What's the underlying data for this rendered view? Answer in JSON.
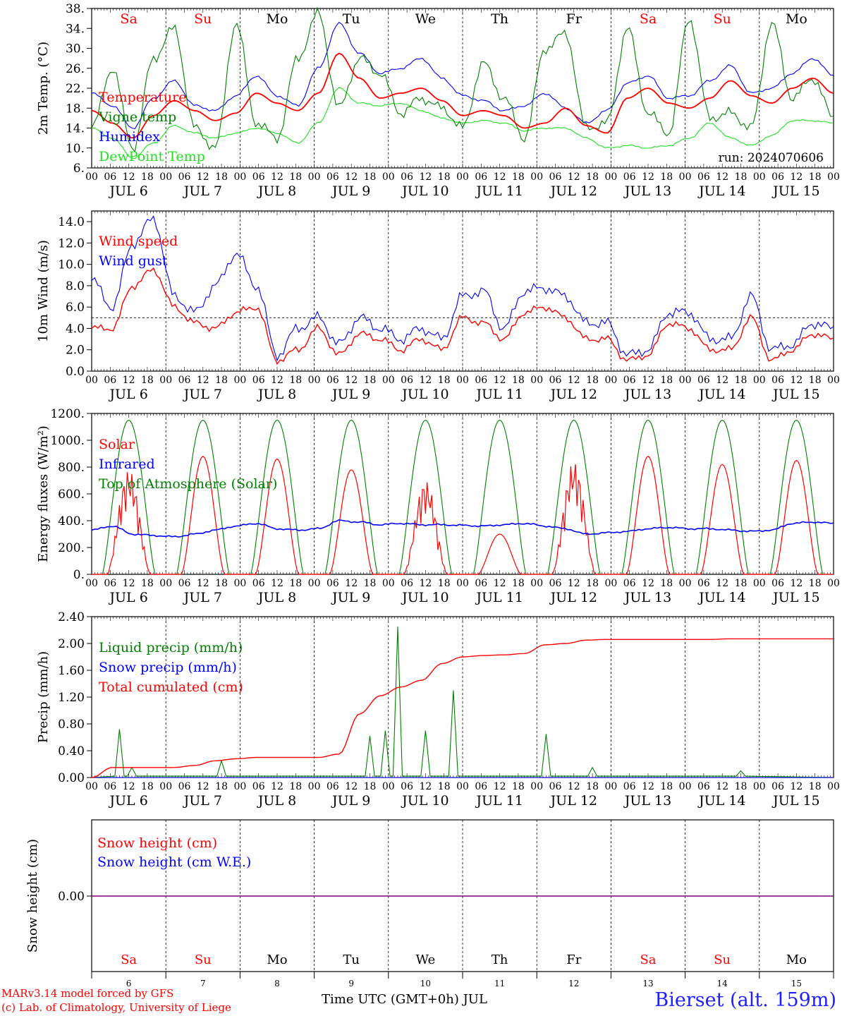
{
  "colors": {
    "red": "#ff0000",
    "green": "#008000",
    "blue": "#0000ff",
    "lightgreen": "#20e020",
    "purple": "#7f007f",
    "axis": "#000000"
  },
  "days": {
    "weekday_labels": [
      "Sa",
      "Su",
      "Mo",
      "Tu",
      "We",
      "Th",
      "Fr",
      "Sa",
      "Su",
      "Mo"
    ],
    "weekday_colors": [
      "red",
      "red",
      "black",
      "black",
      "black",
      "black",
      "black",
      "red",
      "red",
      "black"
    ],
    "date_labels": [
      "JUL  6",
      "JUL  7",
      "JUL  8",
      "JUL  9",
      "JUL 10",
      "JUL 11",
      "JUL 12",
      "JUL 13",
      "JUL 14",
      "JUL 15"
    ],
    "day_numbers": [
      "6",
      "7",
      "8",
      "9",
      "10",
      "11",
      "12",
      "13",
      "14",
      "15"
    ],
    "hour_ticks": [
      "00",
      "06",
      "12",
      "18"
    ],
    "final_tick": "00"
  },
  "chart_data": [
    {
      "type": "line",
      "id": "temp",
      "ylabel": "2m Temp. (°C)",
      "ylim": [
        6,
        38
      ],
      "yticks": [
        "6.",
        "10.",
        "14.",
        "18.",
        "22.",
        "26.",
        "30.",
        "34.",
        "38."
      ],
      "ytick_values": [
        6,
        10,
        14,
        18,
        22,
        26,
        30,
        34,
        38
      ],
      "annotation": "run: 2024070606",
      "x_hours_step": 6,
      "series": [
        {
          "name": "Temperature",
          "color": "red",
          "values": [
            17.5,
            15.0,
            12.0,
            16.5,
            19.5,
            17.5,
            15.5,
            17.0,
            21.0,
            19.0,
            17.5,
            21.0,
            29.0,
            24.0,
            20.0,
            21.0,
            22.0,
            19.5,
            16.5,
            17.5,
            16.5,
            14.0,
            15.0,
            18.0,
            14.5,
            13.0,
            20.0,
            22.0,
            19.0,
            18.0,
            20.0,
            23.5,
            20.5,
            19.0,
            22.0,
            24.0,
            21.0
          ]
        },
        {
          "name": "Vigne temp",
          "color": "green",
          "values": [
            14.0,
            26.0,
            10.0,
            28.0,
            34.0,
            14.0,
            10.0,
            35.0,
            15.0,
            12.0,
            28.0,
            37.0,
            18.0,
            28.0,
            25.0,
            17.0,
            20.0,
            18.0,
            14.0,
            27.0,
            20.0,
            12.0,
            30.0,
            33.0,
            14.0,
            15.0,
            34.0,
            17.0,
            13.0,
            36.0,
            16.0,
            17.0,
            14.0,
            35.0,
            20.0,
            24.0,
            16.0
          ]
        },
        {
          "name": "Humidex",
          "color": "blue",
          "values": [
            21.0,
            18.5,
            14.0,
            20.0,
            23.5,
            18.5,
            17.5,
            20.5,
            24.5,
            20.5,
            18.5,
            26.0,
            35.0,
            29.0,
            25.0,
            26.0,
            28.0,
            24.0,
            20.5,
            19.5,
            17.5,
            18.5,
            21.0,
            18.0,
            15.0,
            17.5,
            23.0,
            24.5,
            20.0,
            20.5,
            23.5,
            26.5,
            21.0,
            22.0,
            25.0,
            28.0,
            24.5
          ]
        },
        {
          "name": "DewPoint Temp",
          "color": "lightgreen",
          "values": [
            14.0,
            12.0,
            8.0,
            11.0,
            14.5,
            13.0,
            12.0,
            13.0,
            14.0,
            13.0,
            11.0,
            15.0,
            22.0,
            19.0,
            18.5,
            19.0,
            17.5,
            16.0,
            15.0,
            15.5,
            15.0,
            13.5,
            14.0,
            14.0,
            12.0,
            10.0,
            10.5,
            10.0,
            10.5,
            12.0,
            15.0,
            12.0,
            10.5,
            12.5,
            15.5,
            15.5,
            15.0
          ]
        }
      ]
    },
    {
      "type": "line",
      "id": "wind",
      "ylabel": "10m Wind (m/s)",
      "ylim": [
        0,
        15
      ],
      "yticks": [
        "0.0",
        "2.0",
        "4.0",
        "6.0",
        "8.0",
        "10.0",
        "12.0",
        "14.0"
      ],
      "ytick_values": [
        0,
        2,
        4,
        6,
        8,
        10,
        12,
        14
      ],
      "reference_line": 5,
      "series": [
        {
          "name": "Wind speed",
          "color": "red",
          "values": [
            4.0,
            4.0,
            8.0,
            9.5,
            6.0,
            4.5,
            4.0,
            5.5,
            6.0,
            1.0,
            2.0,
            4.0,
            1.5,
            3.5,
            3.0,
            2.0,
            3.0,
            2.0,
            5.0,
            4.5,
            3.0,
            5.5,
            6.0,
            5.0,
            3.0,
            3.0,
            1.0,
            1.5,
            4.5,
            4.0,
            2.0,
            2.0,
            5.0,
            1.0,
            2.0,
            3.5,
            3.0
          ]
        },
        {
          "name": "Wind gust",
          "color": "blue",
          "values": [
            8.5,
            6.0,
            12.0,
            14.3,
            7.0,
            5.5,
            8.0,
            11.0,
            8.0,
            1.5,
            4.0,
            5.0,
            2.5,
            5.0,
            4.0,
            3.0,
            4.0,
            3.0,
            7.0,
            7.5,
            4.0,
            7.5,
            7.8,
            7.0,
            4.5,
            4.5,
            1.5,
            2.0,
            5.5,
            5.5,
            3.0,
            3.0,
            7.0,
            2.0,
            2.5,
            4.5,
            4.0
          ]
        }
      ]
    },
    {
      "type": "line",
      "id": "energy",
      "ylabel": "Energy fluxes (W/m²)",
      "ylim": [
        0,
        1200
      ],
      "yticks": [
        "0.",
        "200.",
        "400.",
        "600.",
        "800.",
        "1000.",
        "1200."
      ],
      "ytick_values": [
        0,
        200,
        400,
        600,
        800,
        1000,
        1200
      ],
      "series": [
        {
          "name": "Solar",
          "color": "red",
          "peaks": [
            780,
            880,
            860,
            780,
            700,
            300,
            840,
            880,
            820,
            850
          ]
        },
        {
          "name": "Infrared",
          "color": "blue",
          "values": [
            330,
            360,
            300,
            290,
            280,
            300,
            330,
            360,
            380,
            340,
            330,
            340,
            400,
            390,
            370,
            380,
            370,
            370,
            365,
            360,
            370,
            380,
            360,
            340,
            300,
            310,
            320,
            340,
            350,
            340,
            340,
            330,
            320,
            330,
            380,
            390,
            380
          ]
        },
        {
          "name": "Top of Atmosphere (Solar)",
          "color": "green",
          "peak": 1150
        }
      ]
    },
    {
      "type": "line",
      "id": "precip",
      "ylabel": "Precip (mm/h)",
      "ylim": [
        0,
        2.4
      ],
      "yticks": [
        "0.00",
        "0.40",
        "0.80",
        "1.20",
        "1.60",
        "2.00",
        "2.40"
      ],
      "ytick_values": [
        0,
        0.4,
        0.8,
        1.2,
        1.6,
        2.0,
        2.4
      ],
      "series": [
        {
          "name": "Liquid precip (mm/h)",
          "color": "green",
          "spikes": [
            [
              9,
              0.72
            ],
            [
              13,
              0.15
            ],
            [
              42,
              0.25
            ],
            [
              90,
              0.62
            ],
            [
              95,
              0.7
            ],
            [
              99,
              2.25
            ],
            [
              108,
              0.7
            ],
            [
              117,
              1.3
            ],
            [
              147,
              0.65
            ],
            [
              162,
              0.15
            ],
            [
              210,
              0.1
            ]
          ]
        },
        {
          "name": "Snow precip (mm/h)",
          "color": "blue",
          "values": [
            0
          ]
        },
        {
          "name": "Total cumulated (cm)",
          "color": "red",
          "values": [
            0.0,
            0.15,
            0.15,
            0.15,
            0.15,
            0.18,
            0.25,
            0.28,
            0.3,
            0.3,
            0.3,
            0.3,
            0.35,
            0.95,
            1.22,
            1.35,
            1.45,
            1.7,
            1.8,
            1.82,
            1.83,
            1.85,
            1.98,
            2.0,
            2.05,
            2.06,
            2.06,
            2.06,
            2.06,
            2.06,
            2.06,
            2.07,
            2.07,
            2.07,
            2.07,
            2.07,
            2.07
          ]
        }
      ]
    },
    {
      "type": "line",
      "id": "snow",
      "ylabel": "Snow height (cm)",
      "yticks": [
        "0.00"
      ],
      "series": [
        {
          "name": "Snow height (cm)",
          "color": "red",
          "values": [
            0
          ]
        },
        {
          "name": "Snow height (cm W.E.)",
          "color": "blue",
          "values": [
            0
          ]
        }
      ]
    }
  ],
  "footer": {
    "model_line": "MARv3.14 model forced by GFS",
    "credit_line": "(c) Lab. of Climatology, University of Liege",
    "xlabel": "Time UTC (GMT+0h) JUL",
    "station": "Bierset (alt. 159m)"
  }
}
